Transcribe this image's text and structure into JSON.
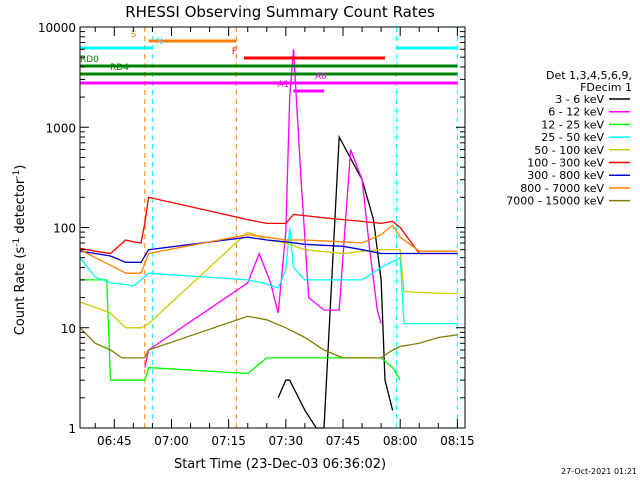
{
  "chart_data": {
    "type": "line",
    "title": "RHESSI Observing Summary Count Rates",
    "xlabel": "Start Time (23-Dec-03 06:36:02)",
    "ylabel_main": "Count Rate (s",
    "ylabel_exp1": "-1",
    "ylabel_mid": " detector",
    "ylabel_exp2": "-1",
    "ylabel_end": ")",
    "yscale": "log",
    "ylim": [
      1,
      10000
    ],
    "xlim": [
      "06:36",
      "08:17"
    ],
    "x_ticks": [
      "06:45",
      "07:00",
      "07:15",
      "07:30",
      "07:45",
      "08:00",
      "08:15"
    ],
    "y_ticks": [
      "1",
      "10",
      "100",
      "1000",
      "10000"
    ],
    "timestamp": "27-Oct-2021 01:21",
    "legend_header": [
      "Det 1,3,4,5,6,9,",
      "FDecim 1"
    ],
    "legend_position": "right",
    "series": [
      {
        "name": "3 - 6 keV",
        "color": "#000000",
        "x": [
          "06:36",
          "06:44",
          "06:50",
          "06:53",
          "06:54",
          "07:18",
          "07:22",
          "07:25",
          "07:28",
          "07:30",
          "07:31",
          "07:35",
          "07:38",
          "07:40",
          "07:44",
          "07:50",
          "07:53",
          "07:55",
          "07:56",
          "07:58",
          "07:59"
        ],
        "y": [
          null,
          null,
          null,
          null,
          null,
          null,
          null,
          null,
          2,
          3,
          3,
          1.5,
          1,
          1,
          800,
          300,
          120,
          30,
          3,
          1.5,
          null
        ]
      },
      {
        "name": "6 - 12 keV",
        "color": "#ff00ff",
        "x": [
          "06:53",
          "06:54",
          "07:20",
          "07:23",
          "07:26",
          "07:28",
          "07:30",
          "07:31",
          "07:32",
          "07:34",
          "07:36",
          "07:40",
          "07:44",
          "07:47",
          "07:50",
          "07:52",
          "07:54",
          "07:55",
          "07:57"
        ],
        "y": [
          4,
          6,
          28,
          55,
          28,
          14,
          90,
          2000,
          6000,
          300,
          20,
          15,
          15,
          600,
          300,
          60,
          15,
          11,
          null
        ]
      },
      {
        "name": "12 - 25 keV",
        "color": "#00ff00",
        "x": [
          "06:36",
          "06:43",
          "06:44",
          "06:48",
          "06:50",
          "06:53",
          "06:54",
          "07:20",
          "07:25",
          "07:30",
          "07:32",
          "07:40",
          "07:50",
          "07:55",
          "07:58",
          "08:00",
          "08:01",
          "08:15"
        ],
        "y": [
          30,
          30,
          3,
          3,
          3,
          3,
          4,
          3.5,
          5,
          5,
          5,
          5,
          5,
          5,
          4,
          3,
          null,
          null
        ]
      },
      {
        "name": "25 - 50 keV",
        "color": "#00ffff",
        "x": [
          "06:36",
          "06:40",
          "06:44",
          "06:48",
          "06:50",
          "06:52",
          "06:54",
          "07:20",
          "07:24",
          "07:28",
          "07:30",
          "07:31",
          "07:32",
          "07:35",
          "07:45",
          "07:50",
          "07:55",
          "08:00",
          "08:01",
          "08:10",
          "08:15"
        ],
        "y": [
          50,
          32,
          28,
          27,
          26,
          30,
          35,
          30,
          28,
          25,
          38,
          100,
          40,
          30,
          30,
          30,
          40,
          50,
          11,
          11,
          11
        ]
      },
      {
        "name": "50 - 100 keV",
        "color": "#cccc00",
        "x": [
          "06:36",
          "06:38",
          "06:40",
          "06:44",
          "06:48",
          "06:52",
          "06:54",
          "07:20",
          "07:25",
          "07:30",
          "07:35",
          "07:45",
          "07:50",
          "07:55",
          "08:00",
          "08:01",
          "08:10",
          "08:15"
        ],
        "y": [
          18,
          17,
          16,
          14,
          10,
          10,
          11,
          90,
          75,
          70,
          60,
          55,
          58,
          60,
          60,
          23,
          22,
          22
        ]
      },
      {
        "name": "100 - 300 keV",
        "color": "#ff0000",
        "x": [
          "06:36",
          "06:40",
          "06:44",
          "06:48",
          "06:50",
          "06:52",
          "06:53",
          "06:54",
          "07:20",
          "07:25",
          "07:30",
          "07:32",
          "07:40",
          "07:45",
          "07:50",
          "07:55",
          "07:58",
          "08:00",
          "08:05",
          "08:10",
          "08:15"
        ],
        "y": [
          62,
          58,
          55,
          75,
          72,
          70,
          110,
          200,
          120,
          110,
          110,
          135,
          125,
          120,
          115,
          110,
          115,
          100,
          55,
          55,
          55
        ]
      },
      {
        "name": "300 - 800 keV",
        "color": "#0000cc",
        "x": [
          "06:36",
          "06:40",
          "06:44",
          "06:48",
          "06:52",
          "06:54",
          "07:20",
          "07:25",
          "07:30",
          "07:35",
          "07:45",
          "07:50",
          "07:55",
          "08:00",
          "08:05",
          "08:15"
        ],
        "y": [
          58,
          55,
          52,
          45,
          45,
          60,
          80,
          75,
          72,
          68,
          65,
          60,
          55,
          55,
          55,
          55
        ]
      },
      {
        "name": "800 - 7000 keV",
        "color": "#ff8000",
        "x": [
          "06:36",
          "06:40",
          "06:44",
          "06:48",
          "06:52",
          "06:54",
          "07:20",
          "07:25",
          "07:30",
          "07:35",
          "07:45",
          "07:50",
          "07:55",
          "07:58",
          "08:00",
          "08:05",
          "08:15"
        ],
        "y": [
          60,
          50,
          42,
          35,
          35,
          55,
          85,
          80,
          75,
          75,
          72,
          70,
          85,
          105,
          80,
          58,
          58
        ]
      },
      {
        "name": "7000 - 15000 keV",
        "color": "#808000",
        "x": [
          "06:36",
          "06:40",
          "06:44",
          "06:47",
          "06:50",
          "06:53",
          "06:54",
          "07:20",
          "07:25",
          "07:30",
          "07:35",
          "07:40",
          "07:45",
          "07:50",
          "07:55",
          "07:58",
          "08:00",
          "08:05",
          "08:10",
          "08:15"
        ],
        "y": [
          10,
          7,
          6,
          5,
          5,
          5,
          6,
          13,
          12,
          10,
          8,
          6,
          5,
          5,
          5,
          6,
          6.5,
          7,
          8,
          8.5
        ]
      }
    ],
    "attenuator_lines": [
      {
        "time": "06:53",
        "color": "#ff8000"
      },
      {
        "time": "07:17",
        "color": "#ff8000"
      }
    ],
    "saa_lines": [
      {
        "time": "06:55",
        "color": "#00ffff"
      },
      {
        "time": "07:59",
        "color": "#00ffff"
      },
      {
        "time": "08:15",
        "color": "#00ffff"
      }
    ],
    "flag_bars": [
      {
        "label": "S",
        "color": "#ff8000",
        "start": "06:54",
        "end": "07:17",
        "level": 1
      },
      {
        "label": "N",
        "color": "#00ffff",
        "start": "06:36",
        "end": "06:55",
        "level": 2
      },
      {
        "label": "",
        "color": "#00ffff",
        "start": "07:59",
        "end": "08:15",
        "level": 2
      },
      {
        "label": "F",
        "color": "#ff0000",
        "start": "07:19",
        "end": "07:56",
        "level": 3
      },
      {
        "label": "RD0",
        "color": "#008000",
        "start": "06:36",
        "end": "08:15",
        "level": 4
      },
      {
        "label": "RD4",
        "color": "#008000",
        "start": "06:36",
        "end": "08:15",
        "level": 5
      },
      {
        "label": "A0",
        "color": "#ff00ff",
        "start": "06:36",
        "end": "08:15",
        "level": 6
      },
      {
        "label": "A1",
        "color": "#ff00ff",
        "start": "07:32",
        "end": "07:40",
        "level": 7
      }
    ]
  }
}
